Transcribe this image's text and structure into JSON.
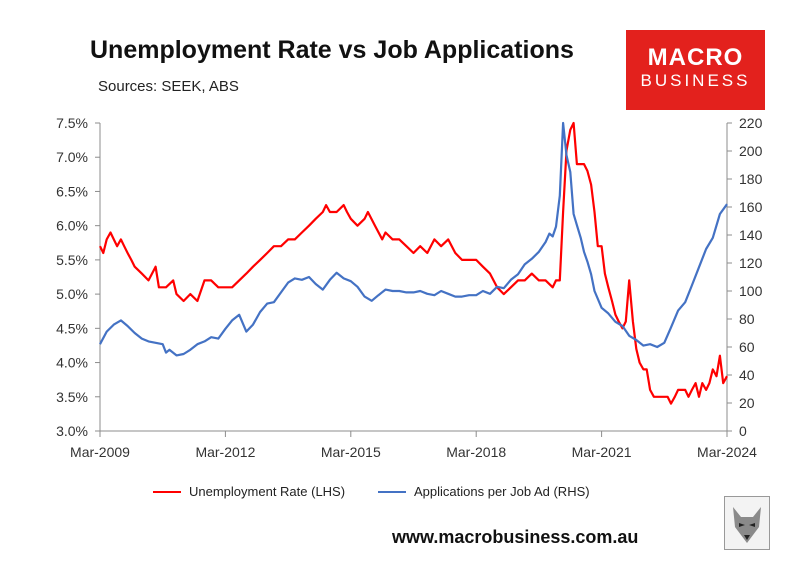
{
  "title": "Unemployment Rate vs Job Applications",
  "subtitle": "Sources: SEEK, ABS",
  "logo": {
    "line1": "MACRO",
    "line2": "BUSINESS"
  },
  "url": "www.macrobusiness.com.au",
  "colors": {
    "unemployment": "#ff0000",
    "applications": "#4472c4",
    "logo_bg": "#e3211d"
  },
  "chart_data": {
    "type": "line",
    "x_ticks": [
      "Mar-2009",
      "Mar-2012",
      "Mar-2015",
      "Mar-2018",
      "Mar-2021",
      "Mar-2024"
    ],
    "x_range": [
      2009.17,
      2024.17
    ],
    "y_left": {
      "ticks": [
        "7.5%",
        "7.0%",
        "6.5%",
        "6.0%",
        "5.5%",
        "5.0%",
        "4.5%",
        "4.0%",
        "3.5%",
        "3.0%"
      ],
      "range": [
        3.0,
        7.5
      ]
    },
    "y_right": {
      "ticks": [
        "220",
        "200",
        "180",
        "160",
        "140",
        "120",
        "100",
        "80",
        "60",
        "40",
        "20",
        "0"
      ],
      "range": [
        0,
        220
      ]
    },
    "grid": false,
    "legend_position": "bottom",
    "series": [
      {
        "name": "Unemployment Rate (LHS)",
        "axis": "left",
        "points": [
          [
            2009.17,
            5.7
          ],
          [
            2009.25,
            5.6
          ],
          [
            2009.33,
            5.8
          ],
          [
            2009.42,
            5.9
          ],
          [
            2009.5,
            5.8
          ],
          [
            2009.58,
            5.7
          ],
          [
            2009.67,
            5.8
          ],
          [
            2009.75,
            5.7
          ],
          [
            2009.83,
            5.6
          ],
          [
            2009.92,
            5.5
          ],
          [
            2010.0,
            5.4
          ],
          [
            2010.17,
            5.3
          ],
          [
            2010.33,
            5.2
          ],
          [
            2010.5,
            5.4
          ],
          [
            2010.58,
            5.1
          ],
          [
            2010.75,
            5.1
          ],
          [
            2010.92,
            5.2
          ],
          [
            2011.0,
            5.0
          ],
          [
            2011.17,
            4.9
          ],
          [
            2011.33,
            5.0
          ],
          [
            2011.5,
            4.9
          ],
          [
            2011.67,
            5.2
          ],
          [
            2011.83,
            5.2
          ],
          [
            2012.0,
            5.1
          ],
          [
            2012.17,
            5.1
          ],
          [
            2012.33,
            5.1
          ],
          [
            2012.5,
            5.2
          ],
          [
            2012.67,
            5.3
          ],
          [
            2012.83,
            5.4
          ],
          [
            2013.0,
            5.5
          ],
          [
            2013.17,
            5.6
          ],
          [
            2013.33,
            5.7
          ],
          [
            2013.5,
            5.7
          ],
          [
            2013.67,
            5.8
          ],
          [
            2013.83,
            5.8
          ],
          [
            2014.0,
            5.9
          ],
          [
            2014.17,
            6.0
          ],
          [
            2014.33,
            6.1
          ],
          [
            2014.5,
            6.2
          ],
          [
            2014.58,
            6.3
          ],
          [
            2014.67,
            6.2
          ],
          [
            2014.83,
            6.2
          ],
          [
            2015.0,
            6.3
          ],
          [
            2015.08,
            6.2
          ],
          [
            2015.17,
            6.1
          ],
          [
            2015.33,
            6.0
          ],
          [
            2015.5,
            6.1
          ],
          [
            2015.58,
            6.2
          ],
          [
            2015.75,
            6.0
          ],
          [
            2015.92,
            5.8
          ],
          [
            2016.0,
            5.9
          ],
          [
            2016.17,
            5.8
          ],
          [
            2016.33,
            5.8
          ],
          [
            2016.5,
            5.7
          ],
          [
            2016.67,
            5.6
          ],
          [
            2016.83,
            5.7
          ],
          [
            2017.0,
            5.6
          ],
          [
            2017.17,
            5.8
          ],
          [
            2017.33,
            5.7
          ],
          [
            2017.5,
            5.8
          ],
          [
            2017.67,
            5.6
          ],
          [
            2017.83,
            5.5
          ],
          [
            2018.0,
            5.5
          ],
          [
            2018.17,
            5.5
          ],
          [
            2018.33,
            5.4
          ],
          [
            2018.5,
            5.3
          ],
          [
            2018.67,
            5.1
          ],
          [
            2018.83,
            5.0
          ],
          [
            2019.0,
            5.1
          ],
          [
            2019.17,
            5.2
          ],
          [
            2019.33,
            5.2
          ],
          [
            2019.5,
            5.3
          ],
          [
            2019.67,
            5.2
          ],
          [
            2019.83,
            5.2
          ],
          [
            2020.0,
            5.1
          ],
          [
            2020.08,
            5.2
          ],
          [
            2020.17,
            5.2
          ],
          [
            2020.25,
            6.2
          ],
          [
            2020.33,
            7.1
          ],
          [
            2020.42,
            7.4
          ],
          [
            2020.5,
            7.5
          ],
          [
            2020.58,
            6.9
          ],
          [
            2020.67,
            6.9
          ],
          [
            2020.75,
            6.9
          ],
          [
            2020.83,
            6.8
          ],
          [
            2020.92,
            6.6
          ],
          [
            2021.0,
            6.2
          ],
          [
            2021.08,
            5.7
          ],
          [
            2021.17,
            5.7
          ],
          [
            2021.25,
            5.3
          ],
          [
            2021.33,
            5.1
          ],
          [
            2021.42,
            4.9
          ],
          [
            2021.5,
            4.7
          ],
          [
            2021.58,
            4.6
          ],
          [
            2021.67,
            4.5
          ],
          [
            2021.75,
            4.6
          ],
          [
            2021.83,
            5.2
          ],
          [
            2021.92,
            4.6
          ],
          [
            2022.0,
            4.2
          ],
          [
            2022.08,
            4.0
          ],
          [
            2022.17,
            3.9
          ],
          [
            2022.25,
            3.9
          ],
          [
            2022.33,
            3.6
          ],
          [
            2022.42,
            3.5
          ],
          [
            2022.5,
            3.5
          ],
          [
            2022.58,
            3.5
          ],
          [
            2022.67,
            3.5
          ],
          [
            2022.75,
            3.5
          ],
          [
            2022.83,
            3.4
          ],
          [
            2022.92,
            3.5
          ],
          [
            2023.0,
            3.6
          ],
          [
            2023.08,
            3.6
          ],
          [
            2023.17,
            3.6
          ],
          [
            2023.25,
            3.5
          ],
          [
            2023.33,
            3.6
          ],
          [
            2023.42,
            3.7
          ],
          [
            2023.5,
            3.5
          ],
          [
            2023.58,
            3.7
          ],
          [
            2023.67,
            3.6
          ],
          [
            2023.75,
            3.7
          ],
          [
            2023.83,
            3.9
          ],
          [
            2023.92,
            3.8
          ],
          [
            2024.0,
            4.1
          ],
          [
            2024.08,
            3.7
          ],
          [
            2024.17,
            3.8
          ]
        ]
      },
      {
        "name": "Applications per Job Ad (RHS)",
        "axis": "right",
        "points": [
          [
            2009.17,
            62
          ],
          [
            2009.33,
            71
          ],
          [
            2009.5,
            76
          ],
          [
            2009.67,
            79
          ],
          [
            2009.83,
            75
          ],
          [
            2010.0,
            70
          ],
          [
            2010.17,
            66
          ],
          [
            2010.33,
            64
          ],
          [
            2010.5,
            63
          ],
          [
            2010.67,
            62
          ],
          [
            2010.75,
            56
          ],
          [
            2010.83,
            58
          ],
          [
            2011.0,
            54
          ],
          [
            2011.17,
            55
          ],
          [
            2011.33,
            58
          ],
          [
            2011.5,
            62
          ],
          [
            2011.67,
            64
          ],
          [
            2011.83,
            67
          ],
          [
            2012.0,
            66
          ],
          [
            2012.17,
            73
          ],
          [
            2012.33,
            79
          ],
          [
            2012.5,
            83
          ],
          [
            2012.67,
            71
          ],
          [
            2012.83,
            76
          ],
          [
            2013.0,
            85
          ],
          [
            2013.17,
            91
          ],
          [
            2013.33,
            92
          ],
          [
            2013.5,
            99
          ],
          [
            2013.67,
            106
          ],
          [
            2013.83,
            109
          ],
          [
            2014.0,
            108
          ],
          [
            2014.17,
            110
          ],
          [
            2014.33,
            105
          ],
          [
            2014.5,
            101
          ],
          [
            2014.67,
            108
          ],
          [
            2014.83,
            113
          ],
          [
            2015.0,
            109
          ],
          [
            2015.17,
            107
          ],
          [
            2015.33,
            103
          ],
          [
            2015.5,
            96
          ],
          [
            2015.67,
            93
          ],
          [
            2015.83,
            97
          ],
          [
            2016.0,
            101
          ],
          [
            2016.17,
            100
          ],
          [
            2016.33,
            100
          ],
          [
            2016.5,
            99
          ],
          [
            2016.67,
            99
          ],
          [
            2016.83,
            100
          ],
          [
            2017.0,
            98
          ],
          [
            2017.17,
            97
          ],
          [
            2017.33,
            100
          ],
          [
            2017.5,
            98
          ],
          [
            2017.67,
            96
          ],
          [
            2017.83,
            96
          ],
          [
            2018.0,
            97
          ],
          [
            2018.17,
            97
          ],
          [
            2018.33,
            100
          ],
          [
            2018.5,
            98
          ],
          [
            2018.67,
            103
          ],
          [
            2018.83,
            102
          ],
          [
            2019.0,
            108
          ],
          [
            2019.17,
            112
          ],
          [
            2019.33,
            119
          ],
          [
            2019.5,
            123
          ],
          [
            2019.67,
            128
          ],
          [
            2019.83,
            135
          ],
          [
            2019.92,
            141
          ],
          [
            2020.0,
            139
          ],
          [
            2020.08,
            146
          ],
          [
            2020.17,
            168
          ],
          [
            2020.25,
            220
          ],
          [
            2020.33,
            197
          ],
          [
            2020.42,
            185
          ],
          [
            2020.5,
            155
          ],
          [
            2020.58,
            147
          ],
          [
            2020.67,
            138
          ],
          [
            2020.75,
            128
          ],
          [
            2020.83,
            121
          ],
          [
            2020.92,
            112
          ],
          [
            2021.0,
            100
          ],
          [
            2021.17,
            88
          ],
          [
            2021.33,
            84
          ],
          [
            2021.5,
            78
          ],
          [
            2021.67,
            75
          ],
          [
            2021.83,
            68
          ],
          [
            2022.0,
            65
          ],
          [
            2022.17,
            61
          ],
          [
            2022.33,
            62
          ],
          [
            2022.5,
            60
          ],
          [
            2022.67,
            63
          ],
          [
            2022.83,
            74
          ],
          [
            2023.0,
            86
          ],
          [
            2023.17,
            92
          ],
          [
            2023.33,
            104
          ],
          [
            2023.5,
            117
          ],
          [
            2023.67,
            130
          ],
          [
            2023.83,
            138
          ],
          [
            2024.0,
            155
          ],
          [
            2024.17,
            162
          ]
        ]
      }
    ]
  }
}
